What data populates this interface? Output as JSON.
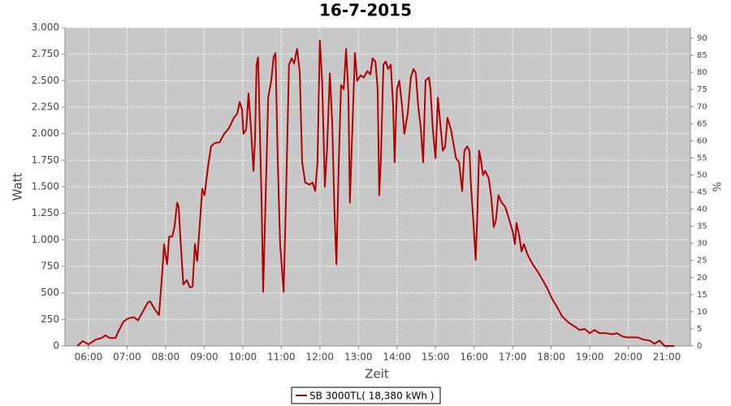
{
  "chart_data": {
    "type": "line",
    "title": "16-7-2015",
    "x_label": "Zeit",
    "y_label": "Watt",
    "y2_label": "%",
    "xlim": [
      5.39,
      21.61
    ],
    "xticks": [
      {
        "value": 6,
        "label": "06:00"
      },
      {
        "value": 7,
        "label": "07:00"
      },
      {
        "value": 8,
        "label": "08:00"
      },
      {
        "value": 9,
        "label": "09:00"
      },
      {
        "value": 10,
        "label": "10:00"
      },
      {
        "value": 11,
        "label": "11:00"
      },
      {
        "value": 12,
        "label": "12:00"
      },
      {
        "value": 13,
        "label": "13:00"
      },
      {
        "value": 14,
        "label": "14:00"
      },
      {
        "value": 15,
        "label": "15:00"
      },
      {
        "value": 16,
        "label": "16:00"
      },
      {
        "value": 17,
        "label": "17:00"
      },
      {
        "value": 18,
        "label": "18:00"
      },
      {
        "value": 19,
        "label": "19:00"
      },
      {
        "value": 20,
        "label": "20:00"
      },
      {
        "value": 21,
        "label": "21:00"
      }
    ],
    "ylim": [
      0,
      3000
    ],
    "yticks": [
      0,
      250,
      500,
      750,
      {
        "value": 1000,
        "label": "1.000"
      },
      {
        "value": 1250,
        "label": "1.250"
      },
      {
        "value": 1500,
        "label": "1.500"
      },
      {
        "value": 1750,
        "label": "1.750"
      },
      {
        "value": 2000,
        "label": "2.000"
      },
      {
        "value": 2250,
        "label": "2.250"
      },
      {
        "value": 2500,
        "label": "2.500"
      },
      {
        "value": 2750,
        "label": "2.750"
      },
      {
        "value": 3000,
        "label": "3.000"
      }
    ],
    "y2lim": [
      0,
      93.1
    ],
    "y2ticks": [
      0,
      5,
      10,
      15,
      20,
      25,
      30,
      35,
      40,
      45,
      50,
      55,
      60,
      65,
      70,
      75,
      80,
      85,
      90
    ],
    "grid": true,
    "legend": "bottom",
    "x": [
      5.71,
      5.85,
      6.0,
      6.19,
      6.34,
      6.44,
      6.55,
      6.7,
      6.78,
      6.91,
      7.03,
      7.18,
      7.28,
      7.39,
      7.54,
      7.6,
      7.71,
      7.83,
      7.92,
      7.96,
      8.0,
      8.04,
      8.09,
      8.17,
      8.23,
      8.3,
      8.34,
      8.38,
      8.46,
      8.55,
      8.63,
      8.7,
      8.76,
      8.82,
      8.91,
      8.95,
      9.01,
      9.1,
      9.18,
      9.27,
      9.4,
      9.52,
      9.64,
      9.77,
      9.86,
      9.92,
      9.98,
      10.02,
      10.09,
      10.15,
      10.21,
      10.28,
      10.32,
      10.36,
      10.4,
      10.44,
      10.49,
      10.53,
      10.59,
      10.66,
      10.74,
      10.8,
      10.85,
      10.91,
      10.97,
      11.06,
      11.12,
      11.2,
      11.27,
      11.33,
      11.41,
      11.48,
      11.54,
      11.62,
      11.73,
      11.81,
      11.88,
      11.94,
      12.0,
      12.06,
      12.13,
      12.19,
      12.26,
      12.32,
      12.38,
      12.43,
      12.49,
      12.55,
      12.62,
      12.68,
      12.74,
      12.78,
      12.85,
      12.91,
      12.97,
      13.06,
      13.14,
      13.23,
      13.31,
      13.37,
      13.44,
      13.5,
      13.54,
      13.58,
      13.65,
      13.71,
      13.77,
      13.84,
      13.9,
      13.94,
      14.0,
      14.06,
      14.13,
      14.19,
      14.28,
      14.36,
      14.43,
      14.49,
      14.55,
      14.62,
      14.68,
      14.74,
      14.83,
      14.87,
      14.93,
      15.0,
      15.06,
      15.12,
      15.19,
      15.25,
      15.31,
      15.4,
      15.46,
      15.53,
      15.61,
      15.69,
      15.75,
      15.82,
      15.88,
      15.92,
      15.98,
      16.04,
      16.08,
      16.13,
      16.17,
      16.23,
      16.29,
      16.38,
      16.44,
      16.51,
      16.57,
      16.63,
      16.72,
      16.81,
      16.91,
      17.0,
      17.06,
      17.1,
      17.17,
      17.23,
      17.29,
      17.4,
      17.52,
      17.65,
      17.78,
      17.9,
      18.03,
      18.15,
      18.28,
      18.45,
      18.62,
      18.74,
      18.87,
      19.0,
      19.12,
      19.25,
      19.42,
      19.59,
      19.71,
      19.84,
      19.97,
      20.24,
      20.39,
      20.56,
      20.68,
      20.81,
      20.94,
      21.19
    ],
    "series": [
      {
        "name": "SB 3000TL( 18,380 kWh )",
        "color": "#b30000",
        "values": [
          0,
          46,
          15,
          60,
          75,
          100,
          75,
          75,
          140,
          230,
          260,
          270,
          240,
          310,
          410,
          420,
          350,
          290,
          730,
          960,
          850,
          770,
          1030,
          1030,
          1120,
          1350,
          1310,
          1040,
          580,
          620,
          550,
          560,
          960,
          800,
          1270,
          1480,
          1420,
          1690,
          1880,
          1910,
          1920,
          2000,
          2050,
          2150,
          2190,
          2300,
          2230,
          2000,
          2040,
          2380,
          2070,
          1650,
          1960,
          2650,
          2720,
          2110,
          1350,
          510,
          1350,
          2340,
          2500,
          2720,
          2760,
          1730,
          960,
          510,
          1350,
          2650,
          2710,
          2660,
          2800,
          2570,
          1730,
          1540,
          1520,
          1540,
          1460,
          1730,
          2880,
          2500,
          1500,
          1880,
          2570,
          2110,
          1270,
          770,
          1730,
          2460,
          2420,
          2800,
          2380,
          1350,
          2110,
          2760,
          2500,
          2550,
          2530,
          2590,
          2560,
          2710,
          2680,
          2420,
          1420,
          1730,
          2650,
          2680,
          2610,
          2650,
          2270,
          1730,
          2420,
          2500,
          2270,
          2000,
          2190,
          2530,
          2610,
          2570,
          2270,
          2040,
          1730,
          2500,
          2530,
          2420,
          2040,
          1770,
          2340,
          2110,
          1840,
          1880,
          2150,
          2040,
          1920,
          1770,
          1730,
          1460,
          1840,
          1880,
          1840,
          1500,
          1190,
          810,
          1190,
          1840,
          1770,
          1610,
          1650,
          1580,
          1420,
          1120,
          1190,
          1420,
          1350,
          1310,
          1190,
          1080,
          960,
          1160,
          1040,
          890,
          960,
          850,
          770,
          700,
          620,
          540,
          440,
          370,
          280,
          220,
          180,
          150,
          160,
          120,
          150,
          120,
          120,
          110,
          120,
          90,
          80,
          80,
          60,
          50,
          20,
          50,
          0,
          0
        ]
      }
    ]
  }
}
